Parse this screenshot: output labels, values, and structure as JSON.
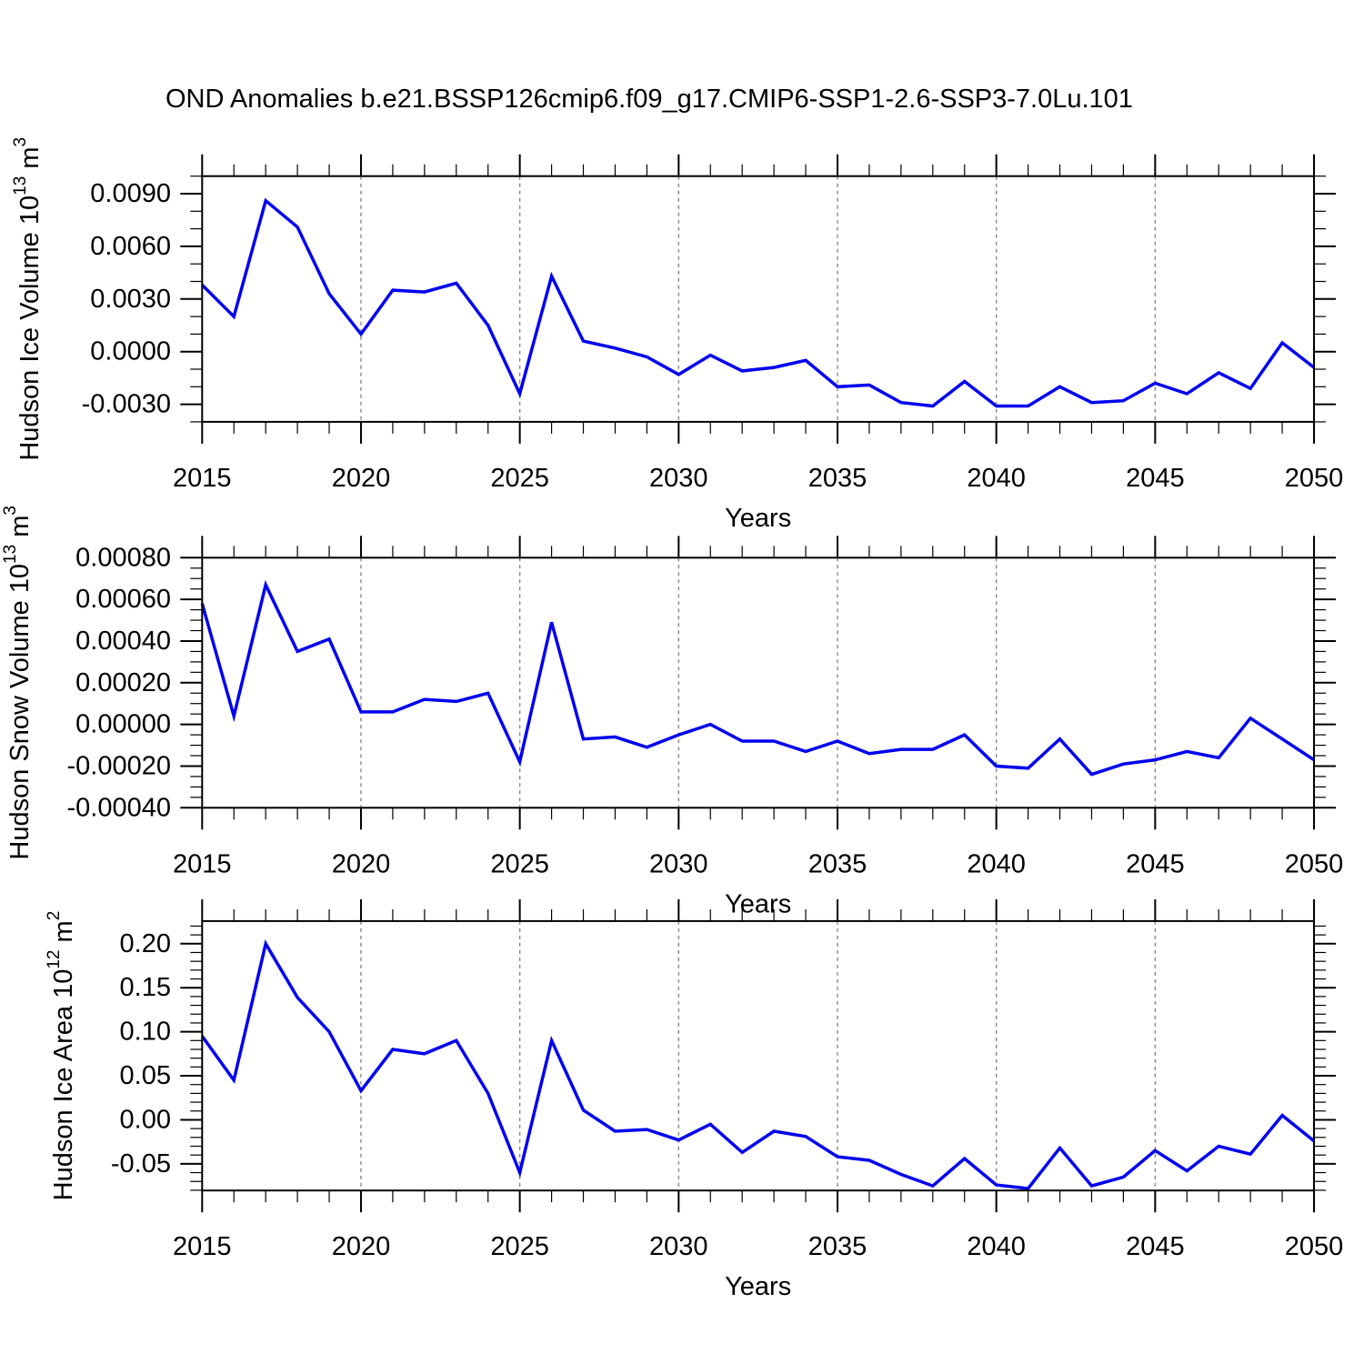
{
  "title": "OND Anomalies b.e21.BSSP126cmip6.f09_g17.CMIP6-SSP1-2.6-SSP3-7.0Lu.101",
  "chart_data": [
    {
      "type": "line",
      "title": "",
      "xlabel": "Years",
      "ylabel": "Hudson Ice Volume 10^13 m^3",
      "ylabel_parts": [
        {
          "t": "Hudson Ice Volume 10"
        },
        {
          "t": "13",
          "sup": true
        },
        {
          "t": " m"
        },
        {
          "t": "3",
          "sup": true
        }
      ],
      "line_color": "#0000EE",
      "x": [
        2015,
        2016,
        2017,
        2018,
        2019,
        2020,
        2021,
        2022,
        2023,
        2024,
        2025,
        2026,
        2027,
        2028,
        2029,
        2030,
        2031,
        2032,
        2033,
        2034,
        2035,
        2036,
        2037,
        2038,
        2039,
        2040,
        2041,
        2042,
        2043,
        2044,
        2045,
        2046,
        2047,
        2048,
        2049,
        2050
      ],
      "values": [
        0.0038,
        0.002,
        0.0086,
        0.0071,
        0.0033,
        0.001,
        0.0035,
        0.0034,
        0.0039,
        0.0015,
        -0.0024,
        0.0043,
        0.0006,
        0.0002,
        -0.0003,
        -0.0013,
        -0.0002,
        -0.0011,
        -0.0009,
        -0.0005,
        -0.002,
        -0.0019,
        -0.0029,
        -0.0031,
        -0.0017,
        -0.0031,
        -0.0031,
        -0.002,
        -0.0029,
        -0.0028,
        -0.0018,
        -0.0024,
        -0.0012,
        -0.0021,
        0.0005,
        -0.0009
      ],
      "ylim": [
        -0.004,
        0.01
      ],
      "yticks": {
        "values": [
          0.009,
          0.006,
          0.003,
          0.0,
          -0.003
        ],
        "labels": [
          "0.0090",
          "0.0060",
          "0.0030",
          "0.0000",
          "-0.0030"
        ]
      },
      "yminor_step": 0.001,
      "xticks": {
        "values": [
          2015,
          2020,
          2025,
          2030,
          2035,
          2040,
          2045,
          2050
        ],
        "labels": [
          "2015",
          "2020",
          "2025",
          "2030",
          "2035",
          "2040",
          "2045",
          "2050"
        ]
      },
      "xminor_step": 1,
      "grid_x": [
        2020,
        2025,
        2030,
        2035,
        2040,
        2045
      ],
      "grid_style": "dashed",
      "legend": "none"
    },
    {
      "type": "line",
      "title": "",
      "xlabel": "Years",
      "ylabel": "Hudson Snow Volume 10^13 m^3",
      "ylabel_parts": [
        {
          "t": "Hudson Snow Volume 10"
        },
        {
          "t": "13",
          "sup": true
        },
        {
          "t": " m"
        },
        {
          "t": "3",
          "sup": true
        }
      ],
      "line_color": "#0000EE",
      "x": [
        2015,
        2016,
        2017,
        2018,
        2019,
        2020,
        2021,
        2022,
        2023,
        2024,
        2025,
        2026,
        2027,
        2028,
        2029,
        2030,
        2031,
        2032,
        2033,
        2034,
        2035,
        2036,
        2037,
        2038,
        2039,
        2040,
        2041,
        2042,
        2043,
        2044,
        2045,
        2046,
        2047,
        2048,
        2049,
        2050
      ],
      "values": [
        0.00058,
        4e-05,
        0.00067,
        0.00035,
        0.00041,
        6e-05,
        6e-05,
        0.00012,
        0.00011,
        0.00015,
        -0.00018,
        0.00049,
        -7e-05,
        -6e-05,
        -0.00011,
        -5e-05,
        0.0,
        -8e-05,
        -8e-05,
        -0.00013,
        -8e-05,
        -0.00014,
        -0.00012,
        -0.00012,
        -5e-05,
        -0.0002,
        -0.00021,
        -7e-05,
        -0.00024,
        -0.00019,
        -0.00017,
        -0.00013,
        -0.00016,
        3e-05,
        -7e-05,
        -0.00017
      ],
      "ylim": [
        -0.0004,
        0.0008
      ],
      "yticks": {
        "values": [
          0.0008,
          0.0006,
          0.0004,
          0.0002,
          0.0,
          -0.0002,
          -0.0004
        ],
        "labels": [
          "0.00080",
          "0.00060",
          "0.00040",
          "0.00020",
          "0.00000",
          "-0.00020",
          "-0.00040"
        ]
      },
      "yminor_step": 5e-05,
      "xticks": {
        "values": [
          2015,
          2020,
          2025,
          2030,
          2035,
          2040,
          2045,
          2050
        ],
        "labels": [
          "2015",
          "2020",
          "2025",
          "2030",
          "2035",
          "2040",
          "2045",
          "2050"
        ]
      },
      "xminor_step": 1,
      "grid_x": [
        2020,
        2025,
        2030,
        2035,
        2040,
        2045
      ],
      "grid_style": "dashed",
      "legend": "none"
    },
    {
      "type": "line",
      "title": "",
      "xlabel": "Years",
      "ylabel": "Hudson Ice Area 10^12 m^2",
      "ylabel_parts": [
        {
          "t": "Hudson Ice Area 10"
        },
        {
          "t": "12",
          "sup": true
        },
        {
          "t": " m"
        },
        {
          "t": "2",
          "sup": true
        }
      ],
      "line_color": "#0000EE",
      "x": [
        2015,
        2016,
        2017,
        2018,
        2019,
        2020,
        2021,
        2022,
        2023,
        2024,
        2025,
        2026,
        2027,
        2028,
        2029,
        2030,
        2031,
        2032,
        2033,
        2034,
        2035,
        2036,
        2037,
        2038,
        2039,
        2040,
        2041,
        2042,
        2043,
        2044,
        2045,
        2046,
        2047,
        2048,
        2049,
        2050
      ],
      "values": [
        0.095,
        0.045,
        0.2,
        0.139,
        0.1,
        0.033,
        0.08,
        0.075,
        0.09,
        0.03,
        -0.06,
        0.09,
        0.011,
        -0.013,
        -0.011,
        -0.023,
        -0.005,
        -0.037,
        -0.013,
        -0.019,
        -0.042,
        -0.046,
        -0.062,
        -0.075,
        -0.044,
        -0.074,
        -0.078,
        -0.032,
        -0.075,
        -0.065,
        -0.035,
        -0.058,
        -0.03,
        -0.039,
        0.005,
        -0.024
      ],
      "ylim": [
        -0.0803,
        0.2257
      ],
      "yticks": {
        "values": [
          0.2,
          0.15,
          0.1,
          0.05,
          0.0,
          -0.05
        ],
        "labels": [
          "0.20",
          "0.15",
          "0.10",
          "0.05",
          "0.00",
          "-0.05"
        ]
      },
      "yminor_step": 0.01,
      "xticks": {
        "values": [
          2015,
          2020,
          2025,
          2030,
          2035,
          2040,
          2045,
          2050
        ],
        "labels": [
          "2015",
          "2020",
          "2025",
          "2030",
          "2035",
          "2040",
          "2045",
          "2050"
        ]
      },
      "xminor_step": 1,
      "grid_x": [
        2020,
        2025,
        2030,
        2035,
        2040,
        2045
      ],
      "grid_style": "dashed",
      "legend": "none"
    }
  ]
}
